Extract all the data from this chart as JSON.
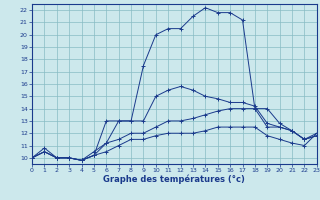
{
  "xlabel": "Graphe des températures (°c)",
  "bg_color": "#cce8ec",
  "grid_color": "#88bcc4",
  "line_color": "#1a3a8c",
  "xlim": [
    0,
    23
  ],
  "ylim": [
    9.5,
    22.5
  ],
  "xticks": [
    0,
    1,
    2,
    3,
    4,
    5,
    6,
    7,
    8,
    9,
    10,
    11,
    12,
    13,
    14,
    15,
    16,
    17,
    18,
    19,
    20,
    21,
    22,
    23
  ],
  "yticks": [
    10,
    11,
    12,
    13,
    14,
    15,
    16,
    17,
    18,
    19,
    20,
    21,
    22
  ],
  "line1_x": [
    0,
    1,
    2,
    3,
    4,
    5,
    6,
    7,
    8,
    9,
    10,
    11,
    12,
    13,
    14,
    15,
    16,
    17,
    18,
    19,
    20,
    21,
    22,
    23
  ],
  "line1_y": [
    10.0,
    10.8,
    10.0,
    10.0,
    9.8,
    10.2,
    13.0,
    13.0,
    13.0,
    17.5,
    20.0,
    20.5,
    20.5,
    21.5,
    22.2,
    21.8,
    21.8,
    21.2,
    14.0,
    14.0,
    12.8,
    12.2,
    11.5,
    11.8
  ],
  "line2_x": [
    0,
    1,
    2,
    3,
    4,
    5,
    6,
    7,
    8,
    9,
    10,
    11,
    12,
    13,
    14,
    15,
    16,
    17,
    18,
    19,
    20,
    21,
    22,
    23
  ],
  "line2_y": [
    10.0,
    10.5,
    10.0,
    10.0,
    9.8,
    10.2,
    11.2,
    13.0,
    13.0,
    13.0,
    15.0,
    15.5,
    15.8,
    15.5,
    15.0,
    14.8,
    14.5,
    14.5,
    14.2,
    12.8,
    12.5,
    12.2,
    11.5,
    11.8
  ],
  "line3_x": [
    0,
    1,
    2,
    3,
    4,
    5,
    6,
    7,
    8,
    9,
    10,
    11,
    12,
    13,
    14,
    15,
    16,
    17,
    18,
    19,
    20,
    21,
    22,
    23
  ],
  "line3_y": [
    10.0,
    10.5,
    10.0,
    10.0,
    9.8,
    10.5,
    11.2,
    11.5,
    12.0,
    12.0,
    12.5,
    13.0,
    13.0,
    13.2,
    13.5,
    13.8,
    14.0,
    14.0,
    14.0,
    12.5,
    12.5,
    12.2,
    11.5,
    12.0
  ],
  "line4_x": [
    0,
    1,
    2,
    3,
    4,
    5,
    6,
    7,
    8,
    9,
    10,
    11,
    12,
    13,
    14,
    15,
    16,
    17,
    18,
    19,
    20,
    21,
    22,
    23
  ],
  "line4_y": [
    10.0,
    10.5,
    10.0,
    10.0,
    9.8,
    10.2,
    10.5,
    11.0,
    11.5,
    11.5,
    11.8,
    12.0,
    12.0,
    12.0,
    12.2,
    12.5,
    12.5,
    12.5,
    12.5,
    11.8,
    11.5,
    11.2,
    11.0,
    12.0
  ]
}
